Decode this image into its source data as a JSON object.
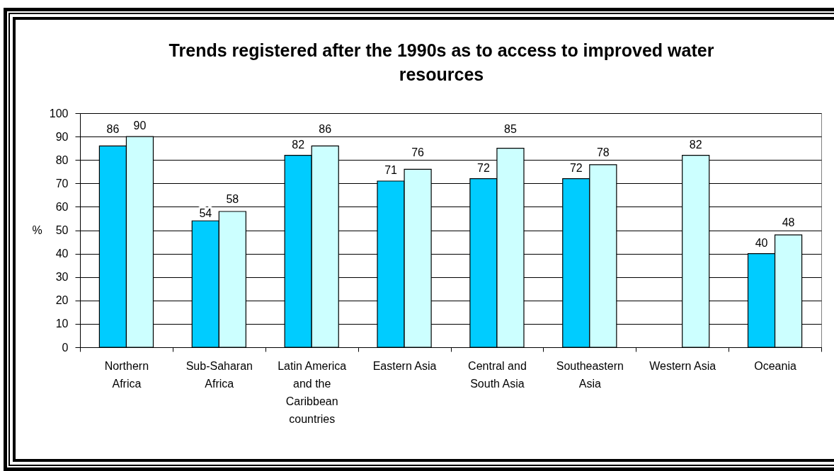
{
  "chart_data": {
    "type": "bar",
    "title": "Trends registered after the 1990s as to access to improved water resources",
    "ylabel": "%",
    "categories": [
      "Northern Africa",
      "Sub-Saharan Africa",
      "Latin America and the Caribbean countries",
      "Eastern Asia",
      "Central and South Asia",
      "Southeastern Asia",
      "Western Asia",
      "Oceania"
    ],
    "series": [
      {
        "color": "#00ccff",
        "values": [
          86,
          54,
          82,
          71,
          72,
          72,
          null,
          40
        ]
      },
      {
        "color": "#ccffff",
        "values": [
          90,
          58,
          86,
          76,
          85,
          78,
          82,
          48
        ]
      }
    ],
    "ylim": [
      0,
      100
    ],
    "yticks": [
      0,
      10,
      20,
      30,
      40,
      50,
      60,
      70,
      80,
      90,
      100
    ],
    "grid": "y",
    "data_labels": true
  }
}
